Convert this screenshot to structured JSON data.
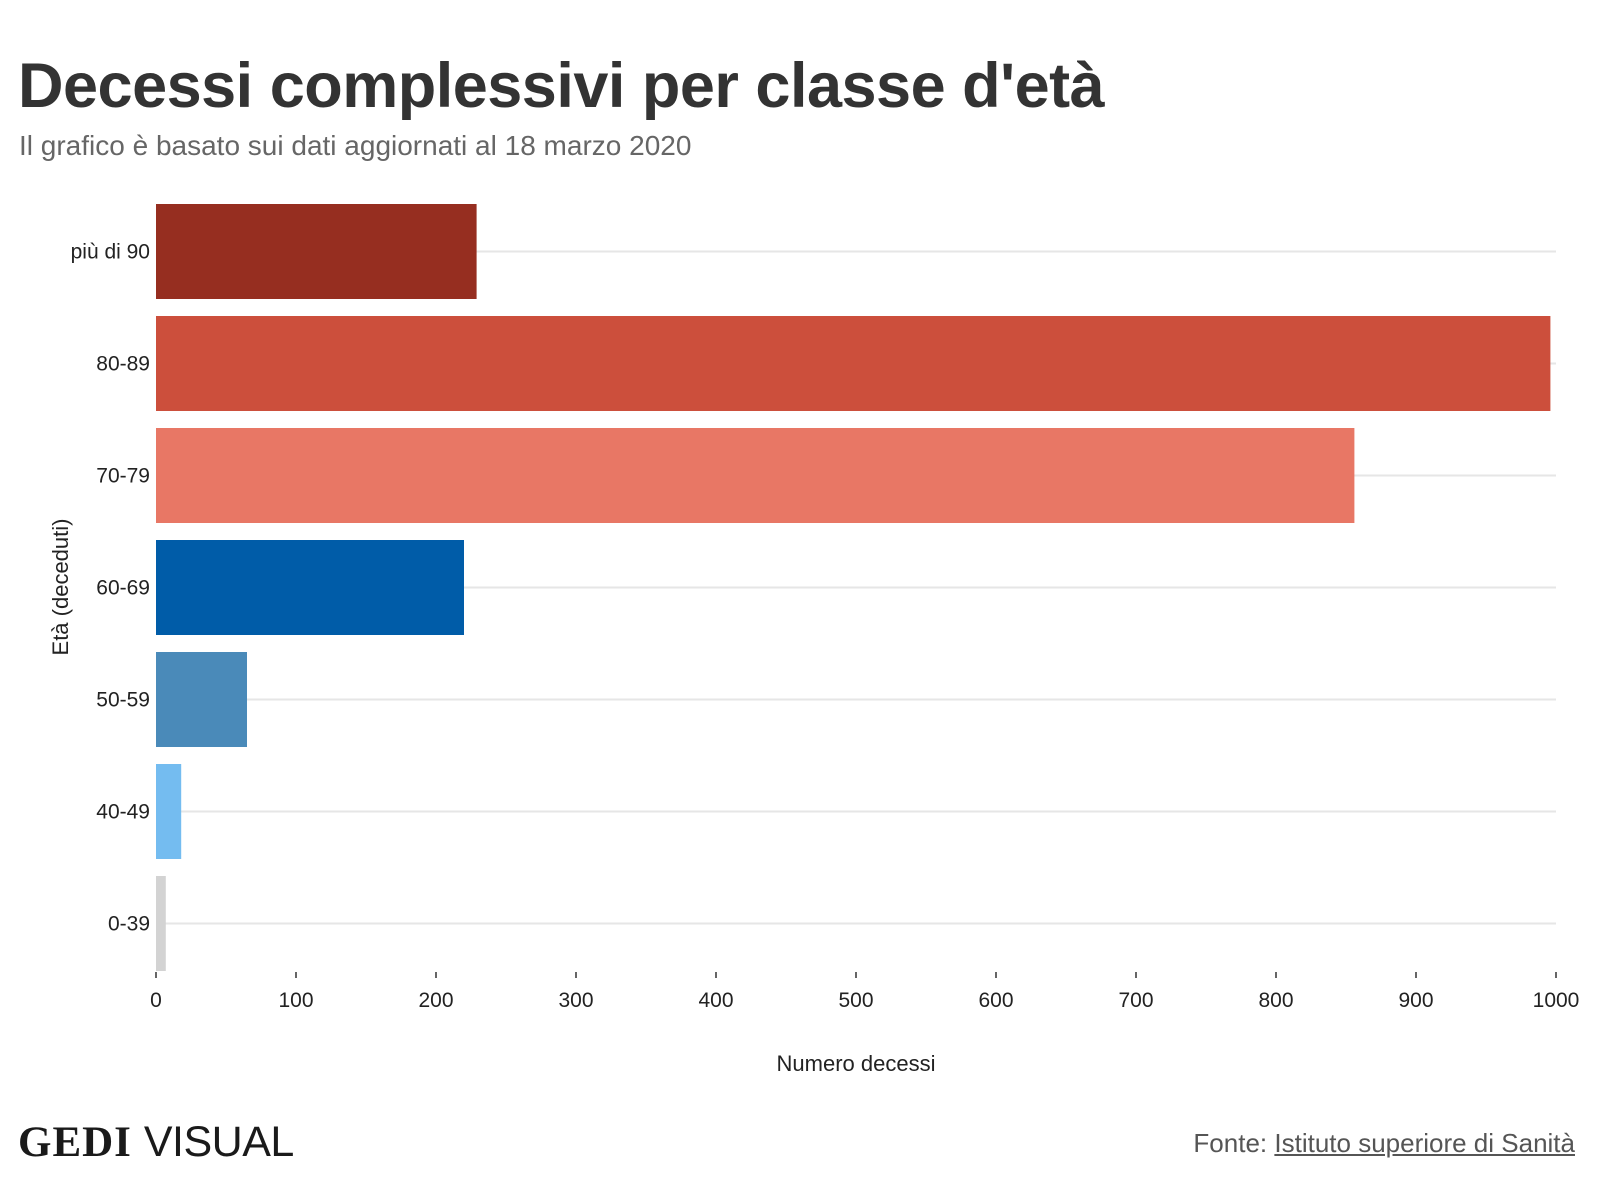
{
  "header": {
    "title": "Decessi complessivi per classe d'età",
    "subtitle": "Il grafico è basato sui dati aggiornati al 18 marzo 2020"
  },
  "chart_data": {
    "type": "bar",
    "orientation": "horizontal",
    "categories": [
      "più di 90",
      "80-89",
      "70-79",
      "60-69",
      "50-59",
      "40-49",
      "0-39"
    ],
    "values": [
      229,
      996,
      856,
      220,
      65,
      18,
      7
    ],
    "colors": [
      "#962e20",
      "#cc4f3c",
      "#e87765",
      "#005ca8",
      "#4a8ab9",
      "#74bcf0",
      "#d3d3d3"
    ],
    "xlabel": "Numero decessi",
    "ylabel": "Età (deceduti)",
    "xlim": [
      0,
      1000
    ],
    "xticks": [
      "0",
      "100",
      "200",
      "300",
      "400",
      "500",
      "600",
      "700",
      "800",
      "900",
      "1000"
    ],
    "grid": "horizontal"
  },
  "footer": {
    "logo_gedi": "GEDI",
    "logo_visual": "VISUAL",
    "source_prefix": "Fonte:",
    "source_link": "Istituto superiore di Sanità"
  }
}
